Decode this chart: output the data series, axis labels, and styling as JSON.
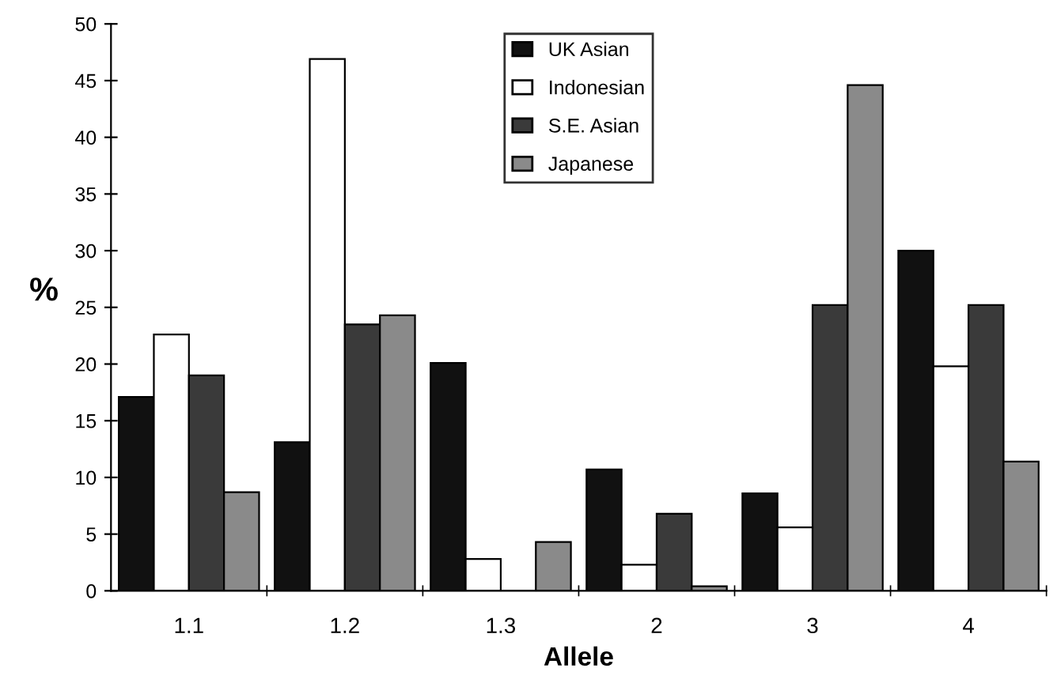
{
  "chart_data": {
    "type": "bar",
    "xlabel": "Allele",
    "ylabel": "%",
    "categories": [
      "1.1",
      "1.2",
      "1.3",
      "2",
      "3",
      "4"
    ],
    "series": [
      {
        "name": "UK Asian",
        "color": "#111111",
        "values": [
          17.1,
          13.1,
          20.1,
          10.7,
          8.6,
          30.0
        ]
      },
      {
        "name": "Indonesian",
        "color": "#ffffff",
        "values": [
          22.6,
          46.9,
          2.8,
          2.3,
          5.6,
          19.8
        ]
      },
      {
        "name": "S.E. Asian",
        "color": "#3a3a3a",
        "values": [
          19.0,
          23.5,
          0,
          6.8,
          25.2,
          25.2
        ]
      },
      {
        "name": "Japanese",
        "color": "#8a8a8a",
        "values": [
          8.7,
          24.3,
          4.3,
          0.4,
          44.6,
          11.4
        ]
      }
    ],
    "ylim": [
      0,
      50
    ],
    "yticks": [
      0,
      5,
      10,
      15,
      20,
      25,
      30,
      35,
      40,
      45,
      50
    ],
    "grid": false,
    "legend": "top"
  }
}
